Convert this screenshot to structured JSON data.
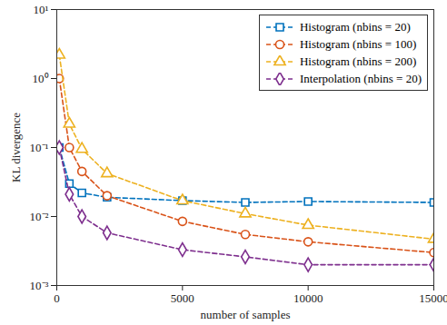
{
  "chart_data": {
    "type": "line",
    "xlabel": "number of samples",
    "ylabel": "KL divergence",
    "x": [
      100,
      500,
      1000,
      2000,
      5000,
      7500,
      10000,
      15000
    ],
    "series": [
      {
        "name": "Histogram (nbins = 20)",
        "color": "#0072BD",
        "marker": "square",
        "line_style": "dashed",
        "values": [
          0.1,
          0.03,
          0.022,
          0.019,
          0.017,
          0.016,
          0.0165,
          0.016
        ]
      },
      {
        "name": "Histogram (nbins = 100)",
        "color": "#D95319",
        "marker": "circle",
        "line_style": "dashed",
        "values": [
          1.0,
          0.1,
          0.045,
          0.02,
          0.0085,
          0.0055,
          0.0043,
          0.003
        ]
      },
      {
        "name": "Histogram (nbins = 200)",
        "color": "#EDB120",
        "marker": "triangle",
        "line_style": "dashed",
        "values": [
          2.2,
          0.22,
          0.095,
          0.042,
          0.017,
          0.011,
          0.0075,
          0.0047
        ]
      },
      {
        "name": "Interpolation (nbins = 20)",
        "color": "#7E2F8E",
        "marker": "diamond",
        "line_style": "dashed",
        "values": [
          0.1,
          0.021,
          0.01,
          0.0058,
          0.0033,
          0.0026,
          0.002,
          0.002
        ]
      }
    ],
    "xlim": [
      0,
      15000
    ],
    "xticks": [
      0,
      5000,
      10000,
      15000
    ],
    "ylim": [
      0.001,
      10
    ],
    "yticks": [
      {
        "value": 0.001,
        "label": "10⁻³"
      },
      {
        "value": 0.01,
        "label": "10⁻²"
      },
      {
        "value": 0.1,
        "label": "10⁻¹"
      },
      {
        "value": 1,
        "label": "10⁰"
      },
      {
        "value": 10,
        "label": "10¹"
      }
    ],
    "log": "y",
    "grid": false,
    "legend": "top-right"
  }
}
